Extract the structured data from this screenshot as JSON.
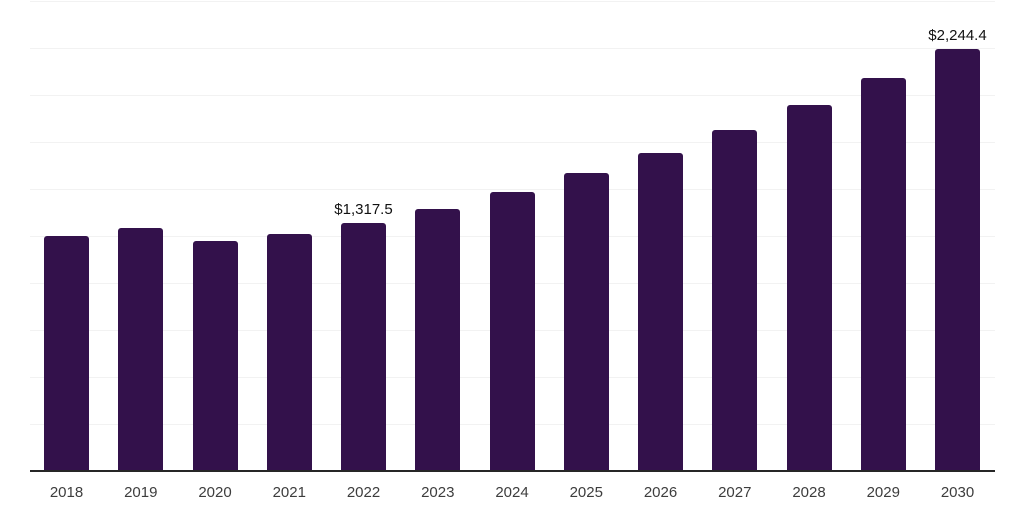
{
  "chart_data": {
    "type": "bar",
    "title": "",
    "xlabel": "",
    "ylabel": "",
    "legend": "none",
    "grid": "horizontal",
    "categories": [
      "2018",
      "2019",
      "2020",
      "2021",
      "2022",
      "2023",
      "2024",
      "2025",
      "2026",
      "2027",
      "2028",
      "2029",
      "2030"
    ],
    "values": [
      1250,
      1295,
      1225,
      1260,
      1317.5,
      1395,
      1485,
      1585,
      1690,
      1815,
      1945,
      2090,
      2244.4
    ],
    "data_labels": {
      "2022": "$1,317.5",
      "2030": "$2,244.4"
    },
    "ylim": [
      0,
      2500
    ],
    "gridline_step": 250,
    "y_tick_labels_visible": false
  },
  "colors": {
    "background": "#ffffff",
    "bar": "#33114b",
    "gridline": "#f2f2f2",
    "axis_line": "#262626",
    "x_label": "#3d3d3d",
    "data_label": "#111111"
  }
}
